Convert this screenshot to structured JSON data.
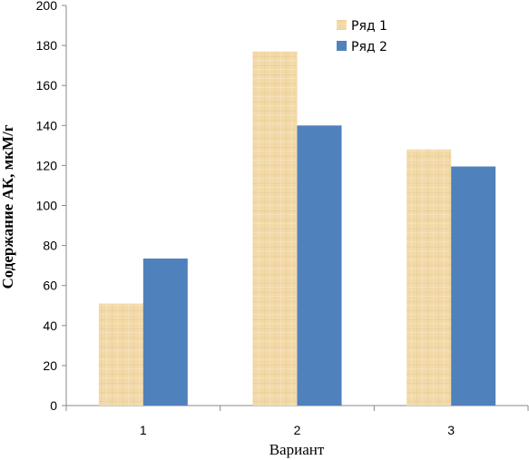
{
  "chart_data": {
    "type": "bar",
    "categories": [
      "1",
      "2",
      "3"
    ],
    "series": [
      {
        "name": "Ряд 1",
        "values": [
          51,
          177,
          128
        ],
        "color": "#F0D5A0",
        "pattern": "parchment-texture"
      },
      {
        "name": "Ряд 2",
        "values": [
          73.5,
          140,
          119.5
        ],
        "color": "#4F81BD"
      }
    ],
    "title": "",
    "xlabel": "Вариант",
    "ylabel": "Содержание АК, мкМ/г",
    "ylim": [
      0,
      200
    ],
    "yticks": [
      "0",
      "20",
      "40",
      "60",
      "80",
      "100",
      "120",
      "140",
      "160",
      "180",
      "200"
    ],
    "grid": false,
    "legend": "top-right"
  }
}
